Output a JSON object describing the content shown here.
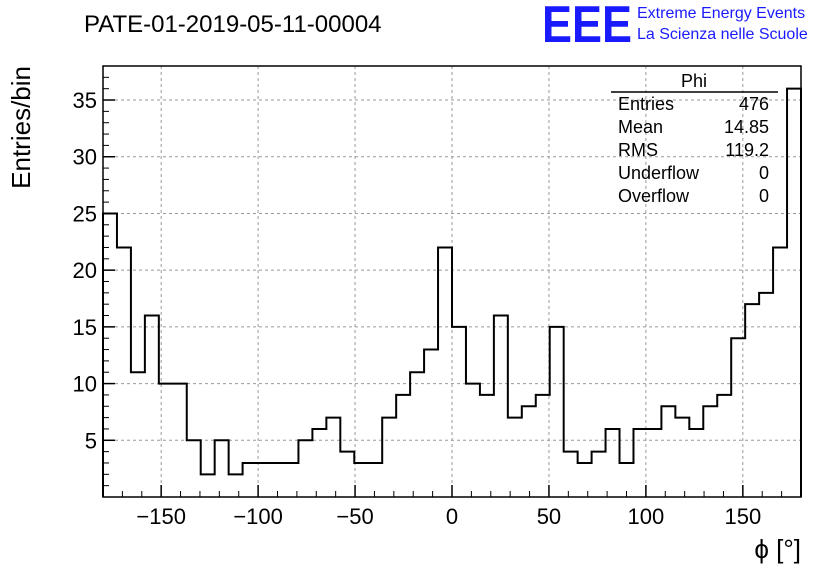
{
  "title": "PATE-01-2019-05-11-00004",
  "logo": {
    "mark": "EEE",
    "line1": "Extreme Energy Events",
    "line2": "La Scienza nelle Scuole",
    "color": "#1a1aff"
  },
  "stats_box": {
    "header": "Phi",
    "rows": [
      {
        "label": "Entries",
        "value": "476"
      },
      {
        "label": "Mean",
        "value": "14.85"
      },
      {
        "label": "RMS",
        "value": "119.2"
      },
      {
        "label": "Underflow",
        "value": "0"
      },
      {
        "label": "Overflow",
        "value": "0"
      }
    ]
  },
  "chart_data": {
    "type": "bar",
    "style": "step-histogram",
    "title": "PATE-01-2019-05-11-00004",
    "xlabel": "ϕ [°]",
    "ylabel": "Entries/bin",
    "xlim": [
      -180,
      180
    ],
    "ylim": [
      0,
      38
    ],
    "bin_width": 7.2,
    "x_ticks": [
      -150,
      -100,
      -50,
      0,
      50,
      100,
      150
    ],
    "x_tick_labels": [
      "−150",
      "−100",
      "−50",
      "0",
      "50",
      "100",
      "150"
    ],
    "y_ticks": [
      5,
      10,
      15,
      20,
      25,
      30,
      35
    ],
    "y_tick_labels": [
      "5",
      "10",
      "15",
      "20",
      "25",
      "30",
      "35"
    ],
    "grid": true,
    "values": [
      25,
      22,
      11,
      16,
      10,
      10,
      5,
      2,
      5,
      2,
      3,
      3,
      3,
      3,
      5,
      6,
      7,
      4,
      3,
      3,
      7,
      9,
      11,
      13,
      22,
      15,
      10,
      9,
      16,
      7,
      8,
      9,
      15,
      4,
      3,
      4,
      6,
      3,
      6,
      6,
      8,
      7,
      6,
      8,
      9,
      14,
      17,
      18,
      22,
      36
    ]
  }
}
